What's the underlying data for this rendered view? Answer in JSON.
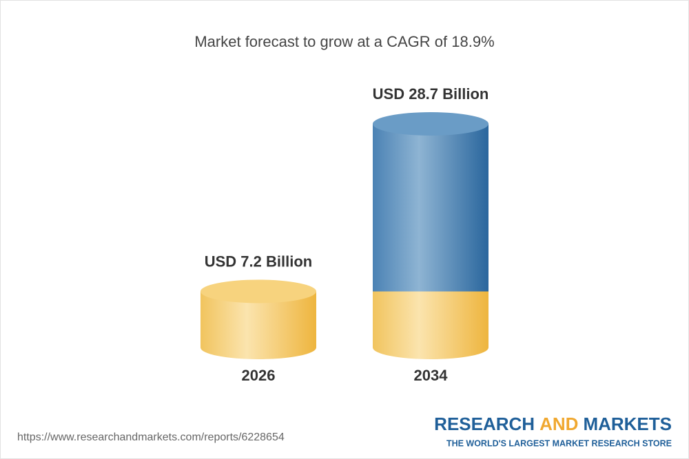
{
  "chart_data": {
    "type": "cylinder",
    "title": "Market forecast to grow at a CAGR of 18.9%",
    "categories": [
      "2026",
      "2034"
    ],
    "values": [
      7.2,
      28.7
    ],
    "value_labels": [
      "USD 7.2 Billion",
      "USD 28.7 Billion"
    ],
    "colors": [
      "#f2c45a",
      "#4f87b8"
    ]
  },
  "footer": {
    "url": "https://www.researchandmarkets.com/reports/6228654",
    "logo": {
      "parts": [
        "RESEARCH",
        "AND",
        "MARKETS"
      ],
      "tagline": "THE WORLD'S LARGEST MARKET RESEARCH STORE"
    }
  }
}
